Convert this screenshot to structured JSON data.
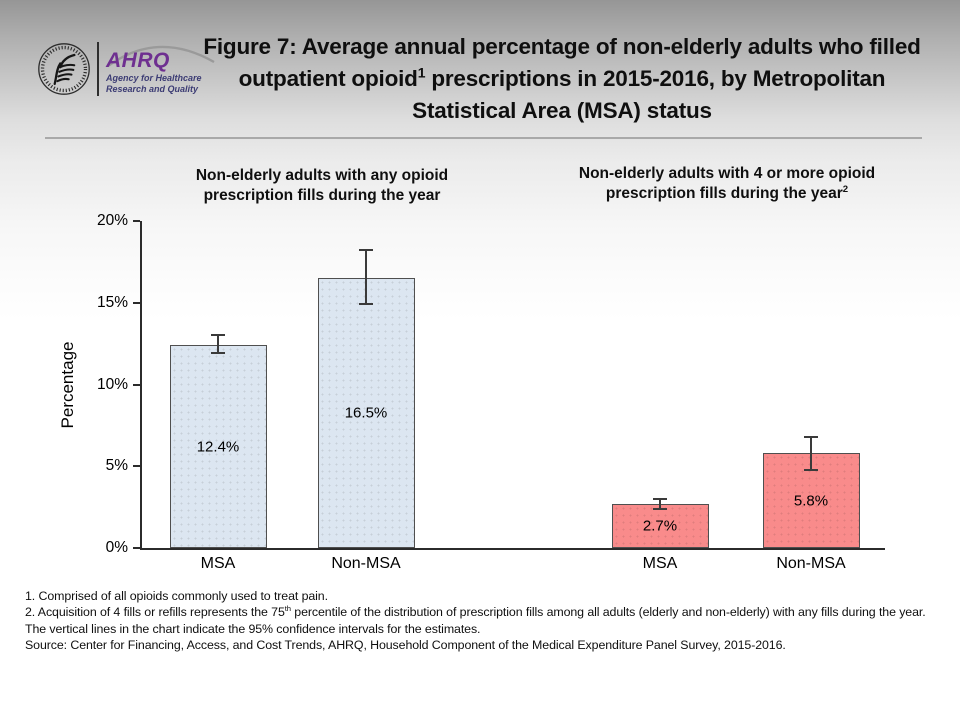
{
  "logo": {
    "hhs_icon": "hhs-eagle-emblem",
    "org_abbr": "AHRQ",
    "tagline_line1": "Agency for Healthcare",
    "tagline_line2": "Research and Quality",
    "accent_color": "#6e2f90"
  },
  "title": {
    "part1": "Figure 7: Average annual percentage of non-elderly adults who filled outpatient opioid",
    "superscript": "1",
    "part2": " prescriptions in 2015-2016, by Metropolitan Statistical Area (MSA) status"
  },
  "chart_data": {
    "type": "bar",
    "ylabel": "Percentage",
    "ylim": [
      0,
      20
    ],
    "yticks": [
      {
        "value": 0,
        "label": "0%"
      },
      {
        "value": 5,
        "label": "5%"
      },
      {
        "value": 10,
        "label": "10%"
      },
      {
        "value": 15,
        "label": "15%"
      },
      {
        "value": 20,
        "label": "20%"
      }
    ],
    "error_bar_meaning": "95% confidence intervals",
    "grid": "off",
    "groups": [
      {
        "subtitle_text": "Non-elderly adults with any opioid prescription fills during the year",
        "subtitle_sup": "",
        "bar_color": "#dce6f1",
        "bars": [
          {
            "category": "MSA",
            "value": 12.4,
            "label": "12.4%",
            "ci_low": 11.9,
            "ci_high": 13.0
          },
          {
            "category": "Non-MSA",
            "value": 16.5,
            "label": "16.5%",
            "ci_low": 14.9,
            "ci_high": 18.2
          }
        ]
      },
      {
        "subtitle_text": "Non-elderly adults with 4 or more opioid prescription fills during the year",
        "subtitle_sup": "2",
        "bar_color": "#f98b8b",
        "bars": [
          {
            "category": "MSA",
            "value": 2.7,
            "label": "2.7%",
            "ci_low": 2.4,
            "ci_high": 3.0
          },
          {
            "category": "Non-MSA",
            "value": 5.8,
            "label": "5.8%",
            "ci_low": 4.8,
            "ci_high": 6.8
          }
        ]
      }
    ]
  },
  "footnotes": {
    "note1": "1.   Comprised of all opioids commonly used to treat pain.",
    "note2_pre": "2.   Acquisition of 4 fills or refills represents the 75",
    "note2_sup": "th",
    "note2_post": " percentile of the distribution of prescription fills among all adults (elderly and non-elderly) with any fills during the year.",
    "note3": "The vertical lines in the chart indicate the 95% confidence intervals for the estimates.",
    "source": "Source: Center for Financing, Access, and Cost Trends, AHRQ, Household Component of the Medical Expenditure Panel Survey, 2015-2016."
  }
}
